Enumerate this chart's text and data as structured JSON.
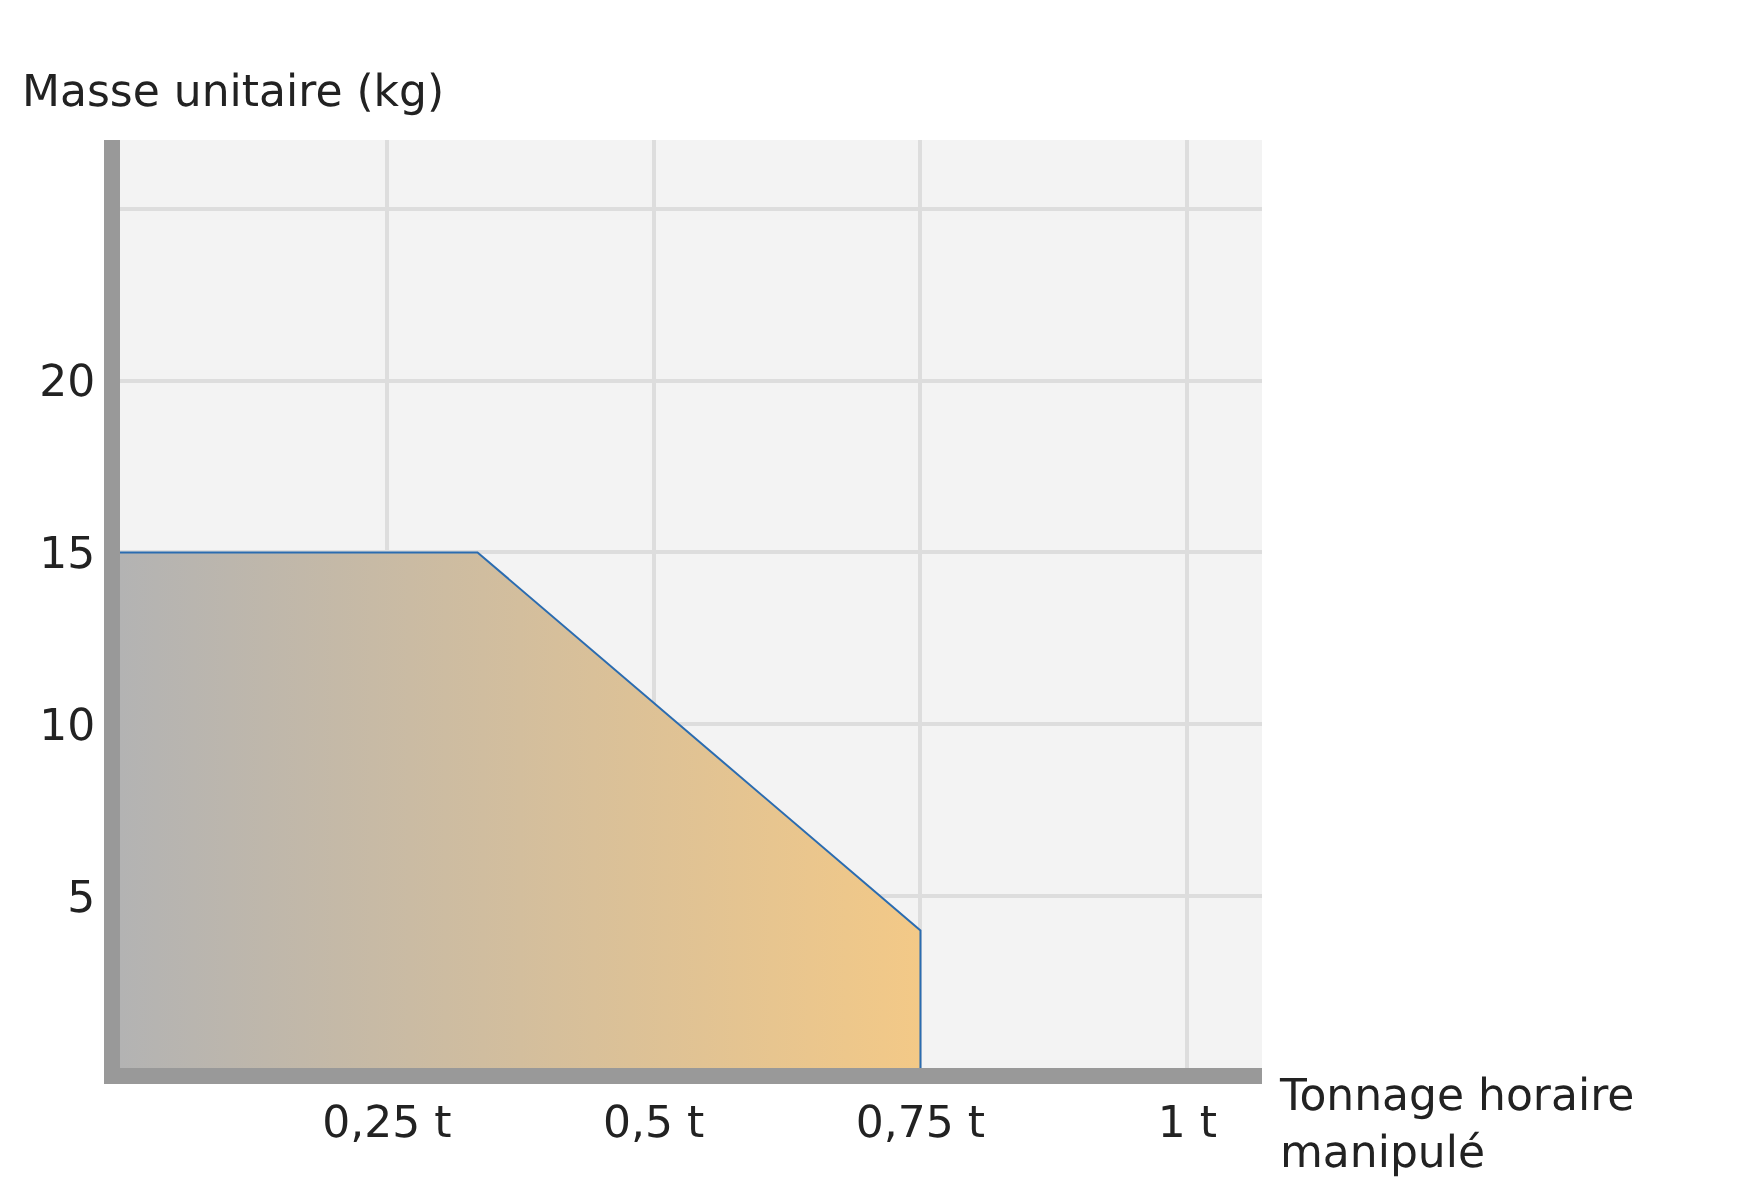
{
  "chart_data": {
    "type": "area",
    "xlabel": "Tonnage horaire manipulé",
    "ylabel": "Masse unitaire (kg)",
    "x": [
      0,
      0.335,
      0.75,
      0.75
    ],
    "series": [
      {
        "color": "#f3c987",
        "values": [
          15,
          15,
          4,
          0
        ]
      }
    ],
    "xlim": [
      0,
      1.07
    ],
    "xticks": [
      {
        "value": 0.25,
        "label": "0,25 t"
      },
      {
        "value": 0.5,
        "label": "0,5 t"
      },
      {
        "value": 0.75,
        "label": "0,75 t"
      },
      {
        "value": 1,
        "label": "1 t"
      }
    ],
    "ylim": [
      0,
      27
    ],
    "yticks": [
      5,
      10,
      15,
      20,
      {
        "value": 25,
        "label": null
      }
    ],
    "grid": true
  }
}
